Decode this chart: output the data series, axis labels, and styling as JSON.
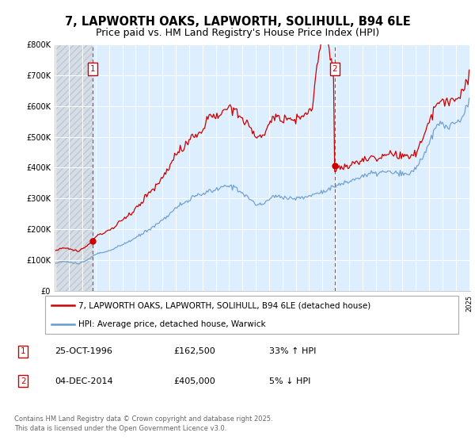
{
  "title_line1": "7, LAPWORTH OAKS, LAPWORTH, SOLIHULL, B94 6LE",
  "title_line2": "Price paid vs. HM Land Registry's House Price Index (HPI)",
  "title_fontsize": 10.5,
  "subtitle_fontsize": 9,
  "legend_label_red": "7, LAPWORTH OAKS, LAPWORTH, SOLIHULL, B94 6LE (detached house)",
  "legend_label_blue": "HPI: Average price, detached house, Warwick",
  "red_color": "#cc0000",
  "blue_color": "#6699cc",
  "bg_fill_color": "#ddeeff",
  "ylim": [
    0,
    800000
  ],
  "yticks": [
    0,
    100000,
    200000,
    300000,
    400000,
    500000,
    600000,
    700000,
    800000
  ],
  "ytick_labels": [
    "£0",
    "£100K",
    "£200K",
    "£300K",
    "£400K",
    "£500K",
    "£600K",
    "£700K",
    "£800K"
  ],
  "footer": "Contains HM Land Registry data © Crown copyright and database right 2025.\nThis data is licensed under the Open Government Licence v3.0.",
  "purchase1_idx": 27,
  "purchase1_value": 162500,
  "purchase2_idx": 243,
  "purchase2_value": 405000,
  "grid_color": "#cccccc",
  "hatch_color": "#bbbbbb"
}
